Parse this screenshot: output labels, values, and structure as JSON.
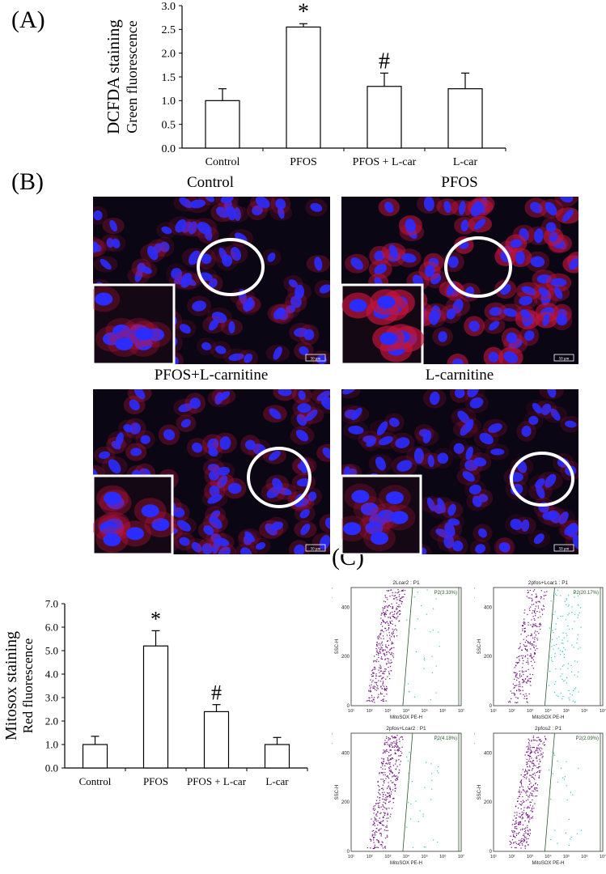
{
  "panels": {
    "a": "(A)",
    "b": "(B)",
    "c": "(C)"
  },
  "colors": {
    "nucleus": "#2b2cff",
    "cytoplasm_red": "#c0143c",
    "circle": "#ffffff",
    "flow_purple": "#6a0a78",
    "flow_cyan": "#2ec4c4",
    "gate_line": "#2a5a2a"
  },
  "chart_data": [
    {
      "type": "bar",
      "ylabel": "DCFDA staining",
      "ylabel2": "Green fluorescence",
      "categories": [
        "Control",
        "PFOS",
        "PFOS + L-car",
        "L-car"
      ],
      "values": [
        1.0,
        2.55,
        1.3,
        1.25
      ],
      "errors": [
        0.25,
        0.07,
        0.28,
        0.33
      ],
      "markers": [
        "",
        "*",
        "#",
        ""
      ],
      "ylim": [
        0,
        3.0
      ],
      "yticks": [
        "0.0",
        "0.5",
        "1.0",
        "1.5",
        "2.0",
        "2.5",
        "3.0"
      ]
    },
    {
      "type": "bar",
      "ylabel": "Mitosox staining",
      "ylabel2": "Red fluorescence",
      "categories": [
        "Control",
        "PFOS",
        "PFOS + L-car",
        "L-car"
      ],
      "values": [
        1.0,
        5.2,
        2.4,
        1.0
      ],
      "errors": [
        0.35,
        0.65,
        0.3,
        0.3
      ],
      "markers": [
        "",
        "*",
        "#",
        ""
      ],
      "ylim": [
        0,
        7.0
      ],
      "yticks": [
        "0.0",
        "1.0",
        "2.0",
        "3.0",
        "4.0",
        "5.0",
        "6.0",
        "7.0"
      ]
    }
  ],
  "micrographs": [
    {
      "title": "Control",
      "scale": "50 μm",
      "intensity": 0.25
    },
    {
      "title": "PFOS",
      "scale": "50 μm",
      "intensity": 0.9
    },
    {
      "title": "PFOS+L-carnitine",
      "scale": "50 μm",
      "intensity": 0.35
    },
    {
      "title": "L-carnitine",
      "scale": "50 μm",
      "intensity": 0.15
    }
  ],
  "flow": [
    {
      "title": "2Lcar2 : P1",
      "gate": "P2(3.33%)",
      "cyan": 0.06
    },
    {
      "title": "2pfos+Lcar1 : P1",
      "gate": "P2(20.17%)",
      "cyan": 0.3
    },
    {
      "title": "2pfos+Lcar2 : P1",
      "gate": "P2(4.18%)",
      "cyan": 0.08
    },
    {
      "title": "2pfos2 : P1",
      "gate": "P2(2.09%)",
      "cyan": 0.05
    }
  ],
  "flow_axes": {
    "xlabel": "MitoSOX PE-H",
    "ylabel": "SSC-H",
    "ymult": "(x10³)",
    "xticks": [
      "10¹",
      "10²",
      "10³",
      "10⁴",
      "10⁵",
      "10⁶",
      "10⁷"
    ],
    "yticks": [
      "0",
      "200",
      "400"
    ]
  }
}
